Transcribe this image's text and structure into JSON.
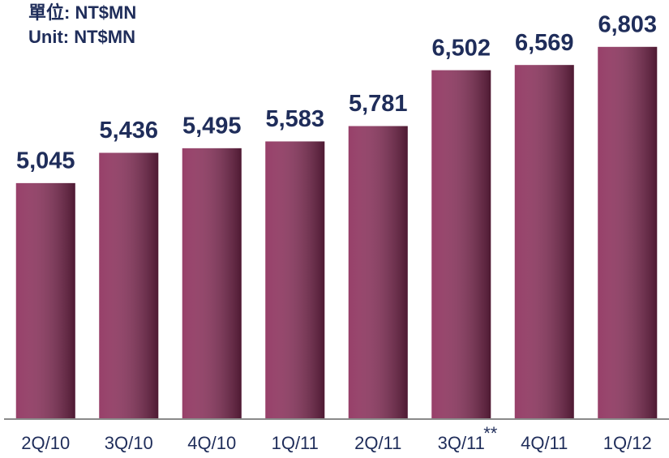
{
  "chart_data": {
    "type": "bar",
    "units": [
      "單位: NT$MN",
      "Unit: NT$MN"
    ],
    "annotation": "**",
    "categories": [
      "2Q/10",
      "3Q/10",
      "4Q/10",
      "1Q/11",
      "2Q/11",
      "3Q/11",
      "4Q/11",
      "1Q/12"
    ],
    "values": [
      5045,
      5436,
      5495,
      5583,
      5781,
      6502,
      6569,
      6803
    ],
    "value_labels": [
      "5,045",
      "5,436",
      "5,495",
      "5,583",
      "5,781",
      "6,502",
      "6,569",
      "6,803"
    ],
    "color": "#8e2f5c",
    "ylim": [
      2000,
      7000
    ]
  }
}
